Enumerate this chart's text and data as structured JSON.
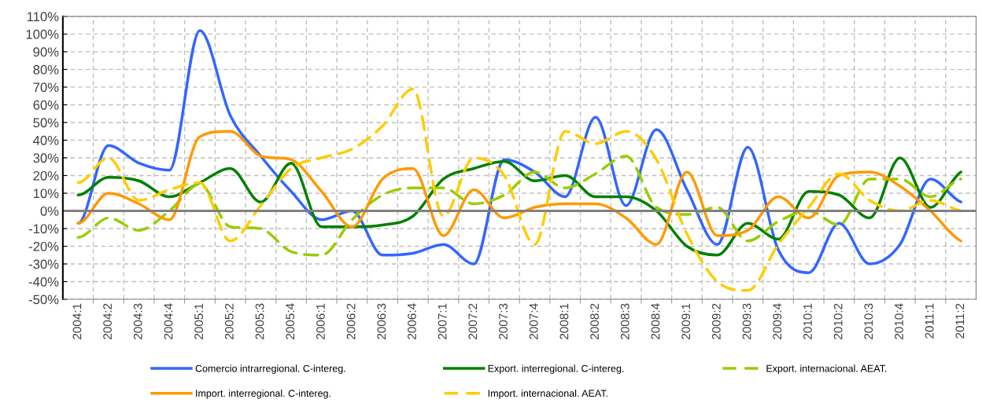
{
  "chart_data": {
    "type": "line",
    "categories": [
      "2004:1",
      "2004:2",
      "2004:3",
      "2004:4",
      "2005:1",
      "2005:2",
      "2005:3",
      "2005:4",
      "2006:1",
      "2006:2",
      "2006:3",
      "2006:4",
      "2007:1",
      "2007:2",
      "2007:3",
      "2007:4",
      "2008:1",
      "2008:2",
      "2008:3",
      "2008:4",
      "2009:1",
      "2009:2",
      "2009:3",
      "2009:4",
      "2010:1",
      "2010:2",
      "2010:3",
      "2010:4",
      "2011:1",
      "2011:2"
    ],
    "series": [
      {
        "name": "Comercio intrarregional. C-intereg.",
        "color": "#3366ff",
        "line_style": "solid",
        "values": [
          -7,
          37,
          27,
          23,
          102,
          54,
          31,
          11,
          -5,
          0,
          -25,
          -24,
          -19,
          -30,
          29,
          22,
          8,
          53,
          3,
          46,
          12,
          -19,
          36,
          -22,
          -35,
          -7,
          -30,
          -19,
          18,
          5
        ]
      },
      {
        "name": "Export. interregional. C-intereg.",
        "color": "#008000",
        "line_style": "solid",
        "values": [
          9,
          19,
          17,
          8,
          16,
          24,
          5,
          27,
          -9,
          -9,
          -8,
          -3,
          18,
          24,
          28,
          17,
          20,
          8,
          8,
          0,
          -20,
          -25,
          -7,
          -16,
          11,
          9,
          -4,
          30,
          2,
          22
        ]
      },
      {
        "name": "Export. internacional. AEAT.",
        "color": "#99cc00",
        "line_style": "dashed",
        "values": [
          -15,
          -4,
          -11,
          0,
          15,
          -9,
          -10,
          -23,
          -25,
          -5,
          9,
          13,
          13,
          4,
          9,
          22,
          13,
          21,
          31,
          2,
          -2,
          2,
          -17,
          -6,
          0,
          -8,
          18,
          18,
          8,
          18
        ]
      },
      {
        "name": "Import. interregional. C-intereg.",
        "color": "#ff9900",
        "line_style": "solid",
        "values": [
          -7,
          10,
          4,
          -5,
          42,
          45,
          31,
          29,
          11,
          -9,
          18,
          24,
          -14,
          12,
          -4,
          2,
          4,
          4,
          -4,
          -19,
          22,
          -14,
          -11,
          8,
          -4,
          20,
          22,
          14,
          0,
          -17
        ]
      },
      {
        "name": "Import. internacional. AEAT.",
        "color": "#ffcc00",
        "line_style": "dashed",
        "values": [
          16,
          30,
          6,
          12,
          16,
          -17,
          3,
          24,
          30,
          35,
          48,
          69,
          -3,
          30,
          20,
          -19,
          45,
          38,
          45,
          29,
          -13,
          -40,
          -45,
          -19,
          2,
          21,
          6,
          0,
          6,
          0
        ]
      }
    ],
    "ylim": [
      -50,
      110
    ],
    "yticks": [
      {
        "value": -50,
        "label": "-50%"
      },
      {
        "value": -40,
        "label": "-40%"
      },
      {
        "value": -30,
        "label": "-30%"
      },
      {
        "value": -20,
        "label": "-20%"
      },
      {
        "value": -10,
        "label": "-10%"
      },
      {
        "value": 0,
        "label": "0%"
      },
      {
        "value": 10,
        "label": "10%"
      },
      {
        "value": 20,
        "label": "20%"
      },
      {
        "value": 30,
        "label": "30%"
      },
      {
        "value": 40,
        "label": "40%"
      },
      {
        "value": 50,
        "label": "50%"
      },
      {
        "value": 60,
        "label": "60%"
      },
      {
        "value": 70,
        "label": "70%"
      },
      {
        "value": 80,
        "label": "80%"
      },
      {
        "value": 90,
        "label": "90%"
      },
      {
        "value": 100,
        "label": "100%"
      },
      {
        "value": 110,
        "label": "110%"
      }
    ],
    "ref_lines": [
      {
        "axis": "y",
        "value": 0,
        "color": "#808080",
        "line_style": "solid"
      }
    ],
    "grid": true,
    "legend": "bottom",
    "marker": "none"
  }
}
